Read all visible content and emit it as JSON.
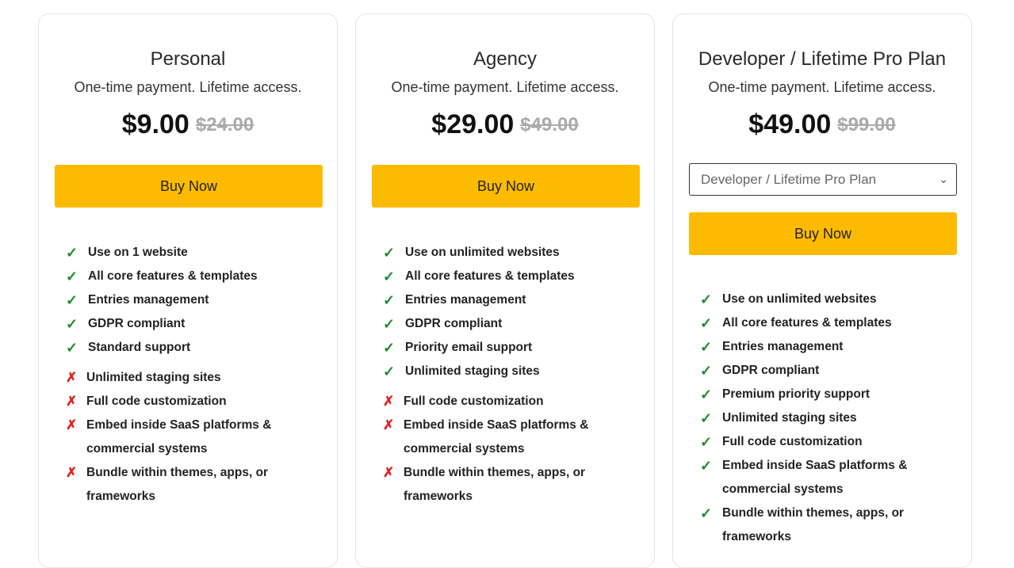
{
  "colors": {
    "button": "#fdbb00",
    "check": "#1f8a2a",
    "cross": "#e02020"
  },
  "plans": [
    {
      "title": "Personal",
      "subtitle": "One-time payment. Lifetime access.",
      "price": "$9.00",
      "old_price": "$24.00",
      "button": "Buy Now",
      "features": [
        {
          "text": "Use on 1 website",
          "included": true
        },
        {
          "text": "All core features & templates",
          "included": true
        },
        {
          "text": "Entries management",
          "included": true
        },
        {
          "text": "GDPR compliant",
          "included": true
        },
        {
          "text": "Standard support",
          "included": true
        },
        {
          "text": "Unlimited staging sites",
          "included": false
        },
        {
          "text": "Full code customization",
          "included": false
        },
        {
          "text": "Embed inside SaaS platforms & commercial systems",
          "included": false
        },
        {
          "text": "Bundle within themes, apps, or frameworks",
          "included": false
        }
      ]
    },
    {
      "title": "Agency",
      "subtitle": "One-time payment. Lifetime access.",
      "price": "$29.00",
      "old_price": "$49.00",
      "button": "Buy Now",
      "features": [
        {
          "text": "Use on unlimited websites",
          "included": true
        },
        {
          "text": "All core features & templates",
          "included": true
        },
        {
          "text": "Entries management",
          "included": true
        },
        {
          "text": "GDPR compliant",
          "included": true
        },
        {
          "text": "Priority email support",
          "included": true
        },
        {
          "text": "Unlimited staging sites",
          "included": true
        },
        {
          "text": "Full code customization",
          "included": false
        },
        {
          "text": "Embed inside SaaS platforms & commercial systems",
          "included": false
        },
        {
          "text": "Bundle within themes, apps, or frameworks",
          "included": false
        }
      ]
    },
    {
      "title": "Developer / Lifetime Pro Plan",
      "subtitle": "One-time payment. Lifetime access.",
      "price": "$49.00",
      "old_price": "$99.00",
      "select_value": "Developer / Lifetime Pro Plan",
      "button": "Buy Now",
      "features": [
        {
          "text": "Use on unlimited websites",
          "included": true
        },
        {
          "text": "All core features & templates",
          "included": true
        },
        {
          "text": "Entries management",
          "included": true
        },
        {
          "text": "GDPR compliant",
          "included": true
        },
        {
          "text": "Premium priority support",
          "included": true
        },
        {
          "text": "Unlimited staging sites",
          "included": true
        },
        {
          "text": "Full code customization",
          "included": true
        },
        {
          "text": "Embed inside SaaS platforms & commercial systems",
          "included": true
        },
        {
          "text": "Bundle within themes, apps, or frameworks",
          "included": true
        }
      ]
    }
  ]
}
